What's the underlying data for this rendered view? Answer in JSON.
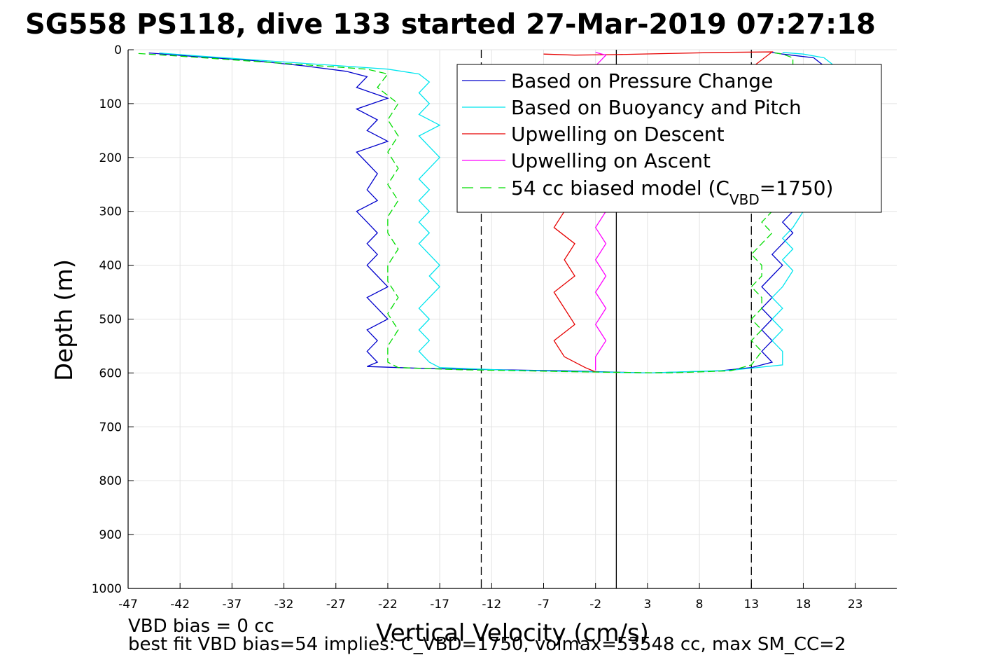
{
  "chart_data": {
    "type": "line",
    "title": "SG558 PS118, dive 133 started 27-Mar-2019 07:27:18",
    "xlabel": "Vertical Velocity (cm/s)",
    "ylabel": "Depth (m)",
    "xlim": [
      -47,
      27
    ],
    "ylim": [
      0,
      1000
    ],
    "y_reversed": true,
    "x_ticks": [
      -47,
      -42,
      -37,
      -32,
      -27,
      -22,
      -17,
      -12,
      -7,
      -2,
      3,
      8,
      13,
      18,
      23
    ],
    "y_ticks": [
      0,
      100,
      200,
      300,
      400,
      500,
      600,
      700,
      800,
      900,
      1000
    ],
    "grid": true,
    "legend_position": "top-right",
    "reference_lines": [
      {
        "x": -13,
        "style": "dashed",
        "color": "#000000"
      },
      {
        "x": 0,
        "style": "solid",
        "color": "#000000"
      },
      {
        "x": 13,
        "style": "dashed",
        "color": "#000000"
      }
    ],
    "series": [
      {
        "name": "Based on Pressure Change",
        "color": "#0000cc",
        "style": "solid",
        "points": [
          [
            -45,
            6
          ],
          [
            -41,
            12
          ],
          [
            -35,
            20
          ],
          [
            -30,
            30
          ],
          [
            -26,
            40
          ],
          [
            -24,
            50
          ],
          [
            -25,
            70
          ],
          [
            -22,
            90
          ],
          [
            -25,
            110
          ],
          [
            -23,
            130
          ],
          [
            -24,
            150
          ],
          [
            -22,
            170
          ],
          [
            -25,
            190
          ],
          [
            -24,
            210
          ],
          [
            -23,
            230
          ],
          [
            -24,
            260
          ],
          [
            -23,
            280
          ],
          [
            -25,
            300
          ],
          [
            -24,
            320
          ],
          [
            -23,
            340
          ],
          [
            -24,
            360
          ],
          [
            -23,
            380
          ],
          [
            -24,
            400
          ],
          [
            -23,
            420
          ],
          [
            -22,
            440
          ],
          [
            -24,
            460
          ],
          [
            -23,
            480
          ],
          [
            -22,
            500
          ],
          [
            -24,
            520
          ],
          [
            -23,
            540
          ],
          [
            -24,
            560
          ],
          [
            -23,
            580
          ],
          [
            -24,
            588
          ],
          [
            -18,
            592
          ],
          [
            -5,
            596
          ],
          [
            3,
            600
          ],
          [
            10,
            596
          ],
          [
            13,
            590
          ],
          [
            15,
            580
          ],
          [
            14,
            560
          ],
          [
            15,
            540
          ],
          [
            14,
            520
          ],
          [
            15,
            500
          ],
          [
            14,
            480
          ],
          [
            15,
            460
          ],
          [
            14,
            440
          ],
          [
            15,
            420
          ],
          [
            16,
            400
          ],
          [
            15,
            380
          ],
          [
            16,
            360
          ],
          [
            17,
            340
          ],
          [
            16,
            320
          ],
          [
            17,
            300
          ],
          [
            18,
            250
          ],
          [
            20,
            150
          ],
          [
            21,
            60
          ],
          [
            20,
            30
          ],
          [
            19,
            15
          ],
          [
            16,
            8
          ],
          [
            15,
            5
          ]
        ]
      },
      {
        "name": "Based on Buoyancy and Pitch",
        "color": "#00e5ee",
        "style": "solid",
        "points": [
          [
            -44,
            6
          ],
          [
            -40,
            12
          ],
          [
            -34,
            20
          ],
          [
            -28,
            28
          ],
          [
            -22,
            36
          ],
          [
            -19,
            45
          ],
          [
            -18,
            60
          ],
          [
            -19,
            80
          ],
          [
            -18,
            100
          ],
          [
            -19,
            120
          ],
          [
            -17,
            140
          ],
          [
            -19,
            160
          ],
          [
            -18,
            180
          ],
          [
            -17,
            200
          ],
          [
            -18,
            220
          ],
          [
            -19,
            240
          ],
          [
            -18,
            260
          ],
          [
            -19,
            280
          ],
          [
            -18,
            300
          ],
          [
            -19,
            320
          ],
          [
            -18,
            340
          ],
          [
            -19,
            360
          ],
          [
            -18,
            380
          ],
          [
            -17,
            400
          ],
          [
            -18,
            420
          ],
          [
            -17,
            440
          ],
          [
            -18,
            460
          ],
          [
            -19,
            480
          ],
          [
            -18,
            500
          ],
          [
            -19,
            520
          ],
          [
            -18,
            540
          ],
          [
            -19,
            560
          ],
          [
            -18,
            580
          ],
          [
            -17,
            590
          ],
          [
            -10,
            595
          ],
          [
            3,
            600
          ],
          [
            11,
            595
          ],
          [
            16,
            585
          ],
          [
            16,
            560
          ],
          [
            15,
            540
          ],
          [
            16,
            520
          ],
          [
            15,
            500
          ],
          [
            16,
            480
          ],
          [
            15,
            460
          ],
          [
            16,
            440
          ],
          [
            17,
            410
          ],
          [
            16,
            390
          ],
          [
            17,
            370
          ],
          [
            16,
            350
          ],
          [
            17,
            330
          ],
          [
            18,
            300
          ],
          [
            19,
            250
          ],
          [
            20,
            150
          ],
          [
            22,
            60
          ],
          [
            21,
            30
          ],
          [
            20,
            15
          ],
          [
            18,
            8
          ],
          [
            16,
            5
          ]
        ]
      },
      {
        "name": "Upwelling on Descent",
        "color": "#e60000",
        "style": "solid",
        "points": [
          [
            -7,
            8
          ],
          [
            -4,
            10
          ],
          [
            0,
            9
          ],
          [
            5,
            7
          ],
          [
            10,
            5
          ],
          [
            15,
            4
          ],
          [
            -5,
            300
          ],
          [
            -6,
            330
          ],
          [
            -4,
            360
          ],
          [
            -5,
            390
          ],
          [
            -4,
            420
          ],
          [
            -6,
            450
          ],
          [
            -5,
            480
          ],
          [
            -4,
            510
          ],
          [
            -6,
            540
          ],
          [
            -5,
            570
          ],
          [
            -3,
            590
          ],
          [
            -2,
            598
          ]
        ]
      },
      {
        "name": "Upwelling on Ascent",
        "color": "#ff00ff",
        "style": "solid",
        "points": [
          [
            -2,
            5
          ],
          [
            -1,
            10
          ],
          [
            -2,
            30
          ],
          [
            -1,
            60
          ],
          [
            -2,
            100
          ],
          [
            -1,
            150
          ],
          [
            -2,
            200
          ],
          [
            -1,
            250
          ],
          [
            -1,
            300
          ],
          [
            -2,
            330
          ],
          [
            -1,
            360
          ],
          [
            -2,
            390
          ],
          [
            -1,
            420
          ],
          [
            -2,
            450
          ],
          [
            -1,
            480
          ],
          [
            -2,
            510
          ],
          [
            -1,
            540
          ],
          [
            -2,
            570
          ],
          [
            -2,
            595
          ]
        ]
      },
      {
        "name": "54 cc biased model (C_VBD=1750)",
        "color": "#00dd00",
        "style": "dashed",
        "points": [
          [
            -46,
            7
          ],
          [
            -42,
            12
          ],
          [
            -36,
            20
          ],
          [
            -30,
            28
          ],
          [
            -24,
            36
          ],
          [
            -22,
            45
          ],
          [
            -23,
            70
          ],
          [
            -21,
            100
          ],
          [
            -22,
            130
          ],
          [
            -21,
            160
          ],
          [
            -22,
            190
          ],
          [
            -21,
            220
          ],
          [
            -22,
            250
          ],
          [
            -21,
            280
          ],
          [
            -22,
            310
          ],
          [
            -22,
            340
          ],
          [
            -21,
            370
          ],
          [
            -22,
            400
          ],
          [
            -22,
            430
          ],
          [
            -21,
            460
          ],
          [
            -22,
            490
          ],
          [
            -21,
            520
          ],
          [
            -22,
            550
          ],
          [
            -22,
            580
          ],
          [
            -21,
            590
          ],
          [
            -15,
            594
          ],
          [
            -3,
            598
          ],
          [
            5,
            600
          ],
          [
            11,
            596
          ],
          [
            13,
            585
          ],
          [
            14,
            560
          ],
          [
            13,
            540
          ],
          [
            14,
            520
          ],
          [
            13,
            500
          ],
          [
            14,
            480
          ],
          [
            14,
            460
          ],
          [
            13,
            440
          ],
          [
            14,
            420
          ],
          [
            14,
            400
          ],
          [
            13,
            380
          ],
          [
            14,
            360
          ],
          [
            15,
            340
          ],
          [
            14,
            320
          ],
          [
            15,
            300
          ],
          [
            16,
            250
          ],
          [
            17,
            150
          ],
          [
            18,
            60
          ],
          [
            17,
            30
          ],
          [
            17,
            15
          ],
          [
            16,
            8
          ],
          [
            15,
            5
          ]
        ]
      }
    ],
    "legend": {
      "entries": [
        {
          "label": "Based on Pressure Change",
          "color": "#0000cc",
          "style": "solid"
        },
        {
          "label": "Based on Buoyancy and Pitch",
          "color": "#00e5ee",
          "style": "solid"
        },
        {
          "label": "Upwelling on Descent",
          "color": "#e60000",
          "style": "solid"
        },
        {
          "label": "Upwelling on Ascent",
          "color": "#ff00ff",
          "style": "solid"
        },
        {
          "label_prefix": "54 cc biased model (C",
          "label_sub": "VBD",
          "label_suffix": "=1750)",
          "color": "#00dd00",
          "style": "dashed"
        }
      ]
    },
    "annotations": {
      "line1": "VBD bias = 0 cc",
      "line2": "best fit VBD bias=54 implies: C_VBD=1750, volmax=53548 cc, max SM_CC=2"
    }
  }
}
